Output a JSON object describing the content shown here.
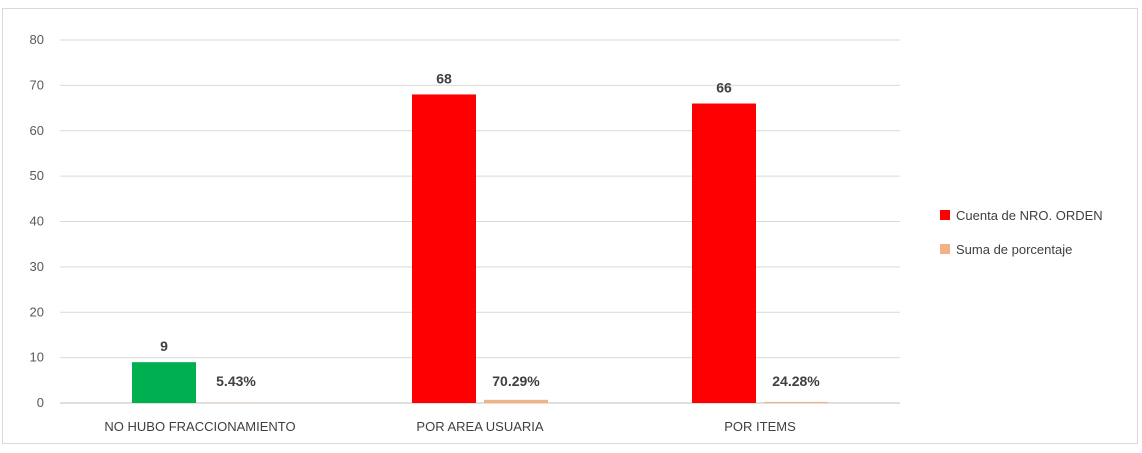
{
  "chart_data": {
    "type": "bar",
    "title": "",
    "xlabel": "",
    "ylabel": "",
    "ylim": [
      0,
      80
    ],
    "yticks": [
      0,
      10,
      20,
      30,
      40,
      50,
      60,
      70,
      80
    ],
    "categories": [
      "NO HUBO FRACCIONAMIENTO",
      "POR AREA USUARIA",
      "POR ITEMS"
    ],
    "series": [
      {
        "name": "Cuenta de NRO. ORDEN",
        "values": [
          9,
          68,
          66
        ],
        "data_labels": [
          "9",
          "68",
          "66"
        ],
        "colors": [
          "#00b050",
          "#ff0000",
          "#ff0000"
        ]
      },
      {
        "name": "Suma de porcentaje",
        "values": [
          0.0543,
          0.7029,
          0.2428
        ],
        "data_labels": [
          "5.43%",
          "70.29%",
          "24.28%"
        ],
        "colors": [
          "#f4b183",
          "#f4b183",
          "#f4b183"
        ]
      }
    ],
    "grid": true,
    "legend_position": "right"
  }
}
